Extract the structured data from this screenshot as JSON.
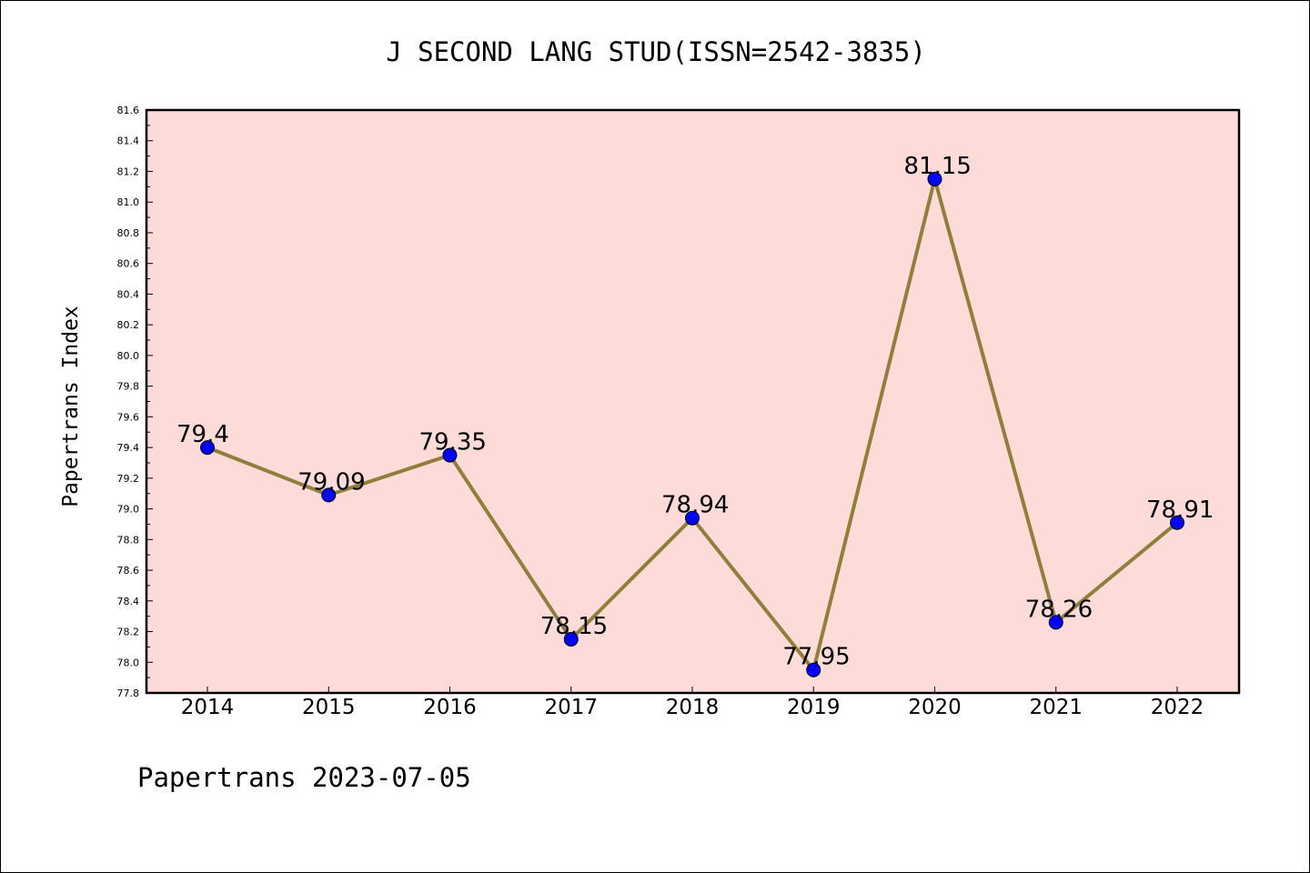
{
  "chart_data": {
    "type": "line",
    "title": "J SECOND LANG STUD(ISSN=2542-3835)",
    "xlabel": "",
    "ylabel": "Papertrans Index",
    "footer": "Papertrans 2023-07-05",
    "categories": [
      "2014",
      "2015",
      "2016",
      "2017",
      "2018",
      "2019",
      "2020",
      "2021",
      "2022"
    ],
    "values": [
      79.4,
      79.09,
      79.35,
      78.15,
      78.94,
      77.95,
      81.15,
      78.26,
      78.91
    ],
    "data_labels": [
      "79.4",
      "79.09",
      "79.35",
      "78.15",
      "78.94",
      "77.95",
      "81.15",
      "78.26",
      "78.91"
    ],
    "ylim": [
      77.8,
      81.6
    ],
    "yticks": [
      "77.8",
      "78.0",
      "78.2",
      "78.4",
      "78.6",
      "78.8",
      "79.0",
      "79.2",
      "79.4",
      "79.6",
      "79.8",
      "80.0",
      "80.2",
      "80.4",
      "80.6",
      "80.8",
      "81.0",
      "81.2",
      "81.4",
      "81.6"
    ],
    "grid": false,
    "legend": "none",
    "colors": {
      "plot_background": "#fddbd9",
      "line": "#8f7f3a",
      "marker": "#0000ff",
      "axis": "#000000"
    }
  }
}
